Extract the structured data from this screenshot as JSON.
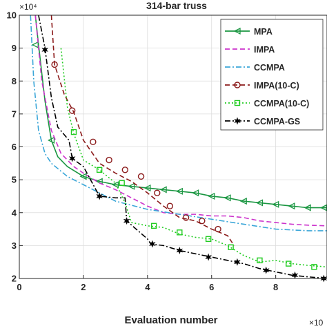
{
  "chart_data": {
    "type": "line",
    "title": "314-bar truss",
    "xlabel": "Evaluation number",
    "ylabel": "",
    "x_exponent_label": "×10",
    "y_exponent_label": "×10⁴",
    "xlim": [
      0,
      9.6
    ],
    "ylim": [
      2,
      10
    ],
    "xticks": [
      0,
      2,
      4,
      6,
      8
    ],
    "xtick_labels": [
      "0",
      "2",
      "4",
      "6",
      "8"
    ],
    "yticks": [
      2,
      3,
      4,
      5,
      6,
      7,
      8,
      9,
      10
    ],
    "ytick_labels": [
      "2",
      "3",
      "4",
      "5",
      "6",
      "7",
      "8",
      "9",
      "10"
    ],
    "grid": true,
    "legend_position": "top-right",
    "series": [
      {
        "name": "MPA",
        "color": "#1a9641",
        "dash": "solid",
        "marker": "triangle-left",
        "x": [
          0.5,
          0.6,
          0.8,
          1.0,
          1.2,
          1.5,
          2.0,
          2.5,
          3.0,
          3.5,
          4.0,
          4.5,
          5.0,
          5.5,
          6.0,
          6.5,
          7.0,
          7.5,
          8.0,
          8.5,
          9.0,
          9.6
        ],
        "y": [
          10.0,
          9.1,
          7.4,
          6.2,
          5.7,
          5.4,
          5.1,
          4.95,
          4.85,
          4.8,
          4.75,
          4.7,
          4.65,
          4.6,
          4.5,
          4.45,
          4.35,
          4.3,
          4.25,
          4.2,
          4.15,
          4.15
        ],
        "marker_x": [
          0.5,
          1.0,
          2.0,
          2.5,
          3.0,
          3.5,
          4.0,
          4.5,
          5.0,
          5.5,
          6.0,
          6.5,
          7.0,
          7.5,
          8.0,
          8.5,
          9.0,
          9.5
        ],
        "marker_y": [
          9.1,
          6.2,
          5.1,
          4.95,
          4.85,
          4.8,
          4.75,
          4.7,
          4.65,
          4.6,
          4.5,
          4.45,
          4.35,
          4.3,
          4.25,
          4.2,
          4.15,
          4.15
        ]
      },
      {
        "name": "IMPA",
        "color": "#cc33cc",
        "dash": "dashed",
        "marker": "none",
        "x": [
          0.5,
          0.7,
          1.0,
          1.3,
          1.7,
          2.0,
          2.5,
          3.0,
          3.5,
          4.0,
          4.5,
          5.0,
          5.5,
          6.0,
          6.5,
          7.0,
          7.5,
          8.0,
          8.5,
          9.0,
          9.6
        ],
        "y": [
          10.0,
          8.0,
          6.5,
          5.8,
          5.4,
          5.2,
          4.9,
          4.7,
          4.45,
          4.2,
          4.0,
          3.95,
          3.95,
          3.9,
          3.9,
          3.85,
          3.75,
          3.7,
          3.65,
          3.62,
          3.6
        ]
      },
      {
        "name": "CCMPA",
        "color": "#3aa6d8",
        "dash": "dashdot",
        "marker": "none",
        "x": [
          0.35,
          0.45,
          0.6,
          0.8,
          1.0,
          1.5,
          2.0,
          2.5,
          3.0,
          4.0,
          5.0,
          6.0,
          7.0,
          8.0,
          9.0,
          9.6
        ],
        "y": [
          10.0,
          8.0,
          6.5,
          5.8,
          5.5,
          5.1,
          4.85,
          4.6,
          4.35,
          4.1,
          3.95,
          3.8,
          3.65,
          3.5,
          3.45,
          3.45
        ]
      },
      {
        "name": "IMPA(10-C)",
        "color": "#8b1a1a",
        "dash": "dashed",
        "marker": "circle",
        "x": [
          1.0,
          1.1,
          1.4,
          1.7,
          2.0,
          2.5,
          3.0,
          3.5,
          4.0,
          4.5,
          5.0,
          5.5,
          6.0,
          6.5,
          6.7
        ],
        "y": [
          10.0,
          8.5,
          7.6,
          7.05,
          6.2,
          5.5,
          5.2,
          4.95,
          4.6,
          4.2,
          3.85,
          3.75,
          3.5,
          3.3,
          3.0
        ],
        "marker_x": [
          1.1,
          1.65,
          2.3,
          2.8,
          3.3,
          3.8,
          4.3,
          4.7,
          5.2,
          5.7,
          6.2
        ],
        "marker_y": [
          8.5,
          7.1,
          6.15,
          5.6,
          5.3,
          5.1,
          4.6,
          4.2,
          3.85,
          3.75,
          3.5
        ]
      },
      {
        "name": "CCMPA(10-C)",
        "color": "#22cc22",
        "dash": "dotted",
        "marker": "square",
        "x": [
          1.3,
          1.5,
          1.7,
          2.0,
          2.5,
          3.0,
          3.3,
          3.5,
          4.0,
          4.5,
          5.0,
          5.5,
          6.0,
          6.5,
          7.0,
          7.5,
          8.0,
          8.5,
          9.0,
          9.6
        ],
        "y": [
          9.0,
          7.2,
          6.4,
          5.6,
          5.3,
          4.9,
          4.3,
          3.7,
          3.6,
          3.55,
          3.35,
          3.25,
          3.2,
          3.0,
          2.7,
          2.5,
          2.55,
          2.45,
          2.4,
          2.35
        ],
        "marker_x": [
          1.7,
          2.5,
          3.2,
          4.2,
          5.0,
          5.9,
          6.6,
          7.5,
          8.4,
          9.2
        ],
        "marker_y": [
          6.45,
          5.3,
          4.9,
          3.6,
          3.4,
          3.2,
          2.95,
          2.55,
          2.45,
          2.35
        ]
      },
      {
        "name": "CCMPA-GS",
        "color": "#000000",
        "dash": "dashdot",
        "marker": "star",
        "x": [
          0.6,
          0.8,
          1.0,
          1.2,
          1.55,
          1.65,
          2.0,
          2.5,
          3.0,
          3.3,
          3.35,
          4.0,
          4.1,
          4.5,
          5.0,
          5.5,
          6.0,
          6.5,
          7.0,
          7.5,
          8.0,
          8.5,
          9.0,
          9.6
        ],
        "y": [
          10.0,
          9.0,
          7.5,
          6.6,
          6.2,
          5.65,
          5.4,
          4.5,
          4.45,
          4.45,
          3.75,
          3.2,
          3.05,
          3.0,
          2.85,
          2.75,
          2.65,
          2.55,
          2.45,
          2.3,
          2.2,
          2.1,
          2.05,
          2.0
        ],
        "marker_x": [
          0.8,
          1.65,
          2.5,
          3.35,
          4.15,
          5.0,
          5.9,
          6.8,
          7.7,
          8.6,
          9.5
        ],
        "marker_y": [
          8.95,
          5.65,
          4.5,
          3.75,
          3.05,
          2.85,
          2.65,
          2.5,
          2.25,
          2.1,
          2.0
        ]
      }
    ]
  }
}
